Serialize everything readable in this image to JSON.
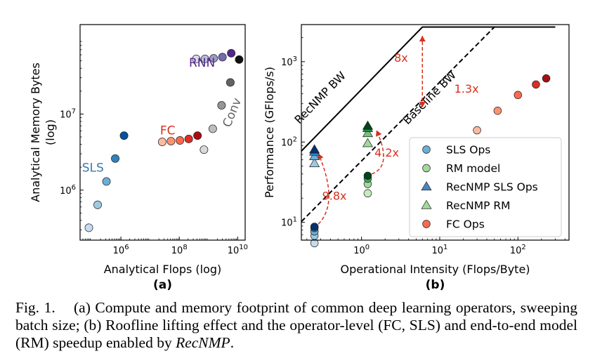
{
  "chart_data": [
    {
      "type": "scatter",
      "panel_label": "(a)",
      "xlabel": "Analytical Flops (log)",
      "ylabel": "Analytical Memory Bytes\n(log)",
      "xscale": "log",
      "yscale": "log",
      "xlim": [
        40000.0,
        18000000000.0
      ],
      "ylim": [
        220000.0,
        150000000.0
      ],
      "xticks": [
        {
          "value": 1000000.0,
          "label": "10^6"
        },
        {
          "value": 100000000.0,
          "label": "10^8"
        },
        {
          "value": 10000000000.0,
          "label": "10^10"
        }
      ],
      "yticks": [
        {
          "value": 1000000.0,
          "label": "10^6"
        },
        {
          "value": 10000000.0,
          "label": "10^7"
        }
      ],
      "groups": [
        {
          "name": "SLS",
          "label_color": "#3a78b5",
          "label_pos": {
            "x": 110000.0,
            "y": 1750000.0
          },
          "points": [
            {
              "x": 80000.0,
              "y": 320000.0,
              "color": "#c6dbef"
            },
            {
              "x": 160000.0,
              "y": 640000.0,
              "color": "#9ecae1"
            },
            {
              "x": 320000.0,
              "y": 1300000.0,
              "color": "#6baed6"
            },
            {
              "x": 640000.0,
              "y": 2600000.0,
              "color": "#3182bd"
            },
            {
              "x": 1280000.0,
              "y": 5200000.0,
              "color": "#08519c"
            }
          ]
        },
        {
          "name": "FC",
          "label_color": "#d7301f",
          "label_pos": {
            "x": 40000000.0,
            "y": 5400000.0
          },
          "points": [
            {
              "x": 26000000.0,
              "y": 4300000.0,
              "color": "#fcbba1"
            },
            {
              "x": 52000000.0,
              "y": 4400000.0,
              "color": "#fc9272"
            },
            {
              "x": 105000000.0,
              "y": 4500000.0,
              "color": "#fb6a4a"
            },
            {
              "x": 210000000.0,
              "y": 4700000.0,
              "color": "#de2d26"
            },
            {
              "x": 420000000.0,
              "y": 5200000.0,
              "color": "#a50f15"
            }
          ]
        },
        {
          "name": "RNN",
          "label_color": "#54278f",
          "label_pos": {
            "x": 600000000.0,
            "y": 42000000.0
          },
          "points": [
            {
              "x": 380000000.0,
              "y": 53000000.0,
              "color": "#dadaeb"
            },
            {
              "x": 760000000.0,
              "y": 53000000.0,
              "color": "#bcbddc"
            },
            {
              "x": 1500000000.0,
              "y": 54000000.0,
              "color": "#9e9ac8"
            },
            {
              "x": 3000000000.0,
              "y": 56000000.0,
              "color": "#756bb1"
            },
            {
              "x": 6000000000.0,
              "y": 63000000.0,
              "color": "#54278f"
            }
          ]
        },
        {
          "name": "Conv",
          "label_color": "#636363",
          "label_pos": {
            "x": 8500000000.0,
            "y": 10000000.0
          },
          "points": [
            {
              "x": 700000000.0,
              "y": 3400000.0,
              "color": "#d9d9d9"
            },
            {
              "x": 1400000000.0,
              "y": 6400000.0,
              "color": "#bdbdbd"
            },
            {
              "x": 2800000000.0,
              "y": 13000000.0,
              "color": "#969696"
            },
            {
              "x": 5600000000.0,
              "y": 26000000.0,
              "color": "#636363"
            },
            {
              "x": 11200000000.0,
              "y": 52000000.0,
              "color": "#111111"
            }
          ]
        }
      ]
    },
    {
      "type": "scatter",
      "panel_label": "(b)",
      "xlabel": "Operational Intensity (Flops/Byte)",
      "ylabel": "Performance (GFlops/s)",
      "xscale": "log",
      "yscale": "log",
      "xlim": [
        0.17,
        450
      ],
      "ylim": [
        6,
        2900
      ],
      "xticks": [
        {
          "value": 1,
          "label": "10^0"
        },
        {
          "value": 10,
          "label": "10^1"
        },
        {
          "value": 100,
          "label": "10^2"
        }
      ],
      "yticks": [
        {
          "value": 10,
          "label": "10^1"
        },
        {
          "value": 100,
          "label": "10^2"
        },
        {
          "value": 1000,
          "label": "10^3"
        }
      ],
      "rooflines": [
        {
          "name": "RecNMP BW",
          "style": "solid",
          "points": [
            {
              "x": 0.17,
              "y": 77
            },
            {
              "x": 6.0,
              "y": 2700
            },
            {
              "x": 300,
              "y": 2700
            }
          ],
          "label_pos": {
            "x": 0.32,
            "y": 330
          }
        },
        {
          "name": "Baseline BW",
          "style": "dashed",
          "points": [
            {
              "x": 0.17,
              "y": 10.2
            },
            {
              "x": 50,
              "y": 2700
            },
            {
              "x": 300,
              "y": 2700
            }
          ],
          "label_pos": {
            "x": 8.0,
            "y": 330
          }
        }
      ],
      "series": [
        {
          "name": "SLS Ops",
          "marker": "circle",
          "legend_color": "#6baed6",
          "points": [
            {
              "x": 0.25,
              "y": 5.5,
              "color": "#c6dbef"
            },
            {
              "x": 0.25,
              "y": 6.8,
              "color": "#9ecae1"
            },
            {
              "x": 0.25,
              "y": 7.7,
              "color": "#6baed6"
            },
            {
              "x": 0.25,
              "y": 8.5,
              "color": "#3182bd"
            },
            {
              "x": 0.25,
              "y": 8.8,
              "color": "#08306b"
            }
          ]
        },
        {
          "name": "RM model",
          "marker": "circle",
          "legend_color": "#a1d99b",
          "points": [
            {
              "x": 1.2,
              "y": 23,
              "color": "#c7e9c0"
            },
            {
              "x": 1.2,
              "y": 30,
              "color": "#a1d99b"
            },
            {
              "x": 1.2,
              "y": 35,
              "color": "#41ab5d"
            },
            {
              "x": 1.2,
              "y": 38,
              "color": "#00441b"
            }
          ]
        },
        {
          "name": "RecNMP SLS Ops",
          "marker": "triangle",
          "legend_color": "#4a86c0",
          "points": [
            {
              "x": 0.25,
              "y": 54,
              "color": "#9ecae1"
            },
            {
              "x": 0.25,
              "y": 66,
              "color": "#6baed6"
            },
            {
              "x": 0.25,
              "y": 75,
              "color": "#3182bd"
            },
            {
              "x": 0.25,
              "y": 80,
              "color": "#08306b"
            }
          ]
        },
        {
          "name": "RecNMP RM",
          "marker": "triangle",
          "legend_color": "#a1d99b",
          "points": [
            {
              "x": 1.2,
              "y": 96,
              "color": "#a1d99b"
            },
            {
              "x": 1.2,
              "y": 128,
              "color": "#74c476"
            },
            {
              "x": 1.2,
              "y": 148,
              "color": "#238b45"
            },
            {
              "x": 1.2,
              "y": 158,
              "color": "#00441b"
            }
          ]
        },
        {
          "name": "FC Ops",
          "marker": "circle",
          "legend_color": "#fb6a4a",
          "points": [
            {
              "x": 30,
              "y": 140,
              "color": "#fcbba1"
            },
            {
              "x": 55,
              "y": 245,
              "color": "#fc9272"
            },
            {
              "x": 100,
              "y": 385,
              "color": "#fb6a4a"
            },
            {
              "x": 170,
              "y": 520,
              "color": "#de2d26"
            },
            {
              "x": 230,
              "y": 620,
              "color": "#a50f15"
            }
          ]
        }
      ],
      "annotations": [
        {
          "text": "8x",
          "x": 3.2,
          "y": 1000,
          "color": "#d7301f"
        },
        {
          "text": "4.2x",
          "x": 2.1,
          "y": 66,
          "color": "#d7301f"
        },
        {
          "text": "9.8x",
          "x": 0.45,
          "y": 19,
          "color": "#d7301f"
        },
        {
          "text": "1.3x",
          "x": 22,
          "y": 410,
          "color": "#d7301f"
        }
      ],
      "arrows": [
        {
          "from": {
            "x": 6.0,
            "y": 2100
          },
          "to": {
            "x": 6.0,
            "y": 270
          },
          "style": "dashed",
          "color": "#d7301f"
        },
        {
          "from": {
            "x": 1.35,
            "y": 40
          },
          "to": {
            "x": 1.55,
            "y": 140
          },
          "style": "dashed",
          "color": "#d7301f"
        },
        {
          "from": {
            "x": 0.28,
            "y": 9.5
          },
          "to": {
            "x": 0.28,
            "y": 72
          },
          "style": "dashed",
          "color": "#d7301f"
        }
      ],
      "legend_position": "lower-right"
    }
  ],
  "caption": {
    "fig_label": "Fig. 1.",
    "text_before_emph": "(a) Compute and memory footprint of common deep learning operators, sweeping batch size; (b) Roofline lifting effect and the operator-level (FC, SLS) and end-to-end model (RM) speedup enabled by ",
    "emph": "RecNMP",
    "text_after_emph": "."
  }
}
